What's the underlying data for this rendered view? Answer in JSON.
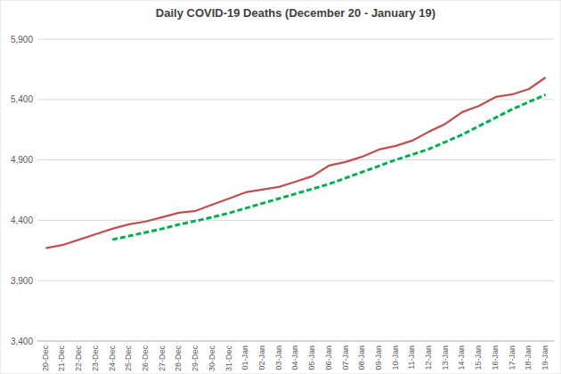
{
  "chart_data": {
    "type": "line",
    "title": "Daily COVID-19 Deaths (December 20 - January 19)",
    "categories": [
      "20-Dec",
      "21-Dec",
      "22-Dec",
      "23-Dec",
      "24-Dec",
      "25-Dec",
      "26-Dec",
      "27-Dec",
      "28-Dec",
      "29-Dec",
      "30-Dec",
      "31-Dec",
      "01-Jan",
      "02-Jan",
      "03-Jan",
      "04-Jan",
      "05-Jan",
      "06-Jan",
      "07-Jan",
      "08-Jan",
      "09-Jan",
      "10-Jan",
      "11-Jan",
      "12-Jan",
      "13-Jan",
      "14-Jan",
      "15-Jan",
      "16-Jan",
      "17-Jan",
      "18-Jan",
      "19-Jan"
    ],
    "series": [
      {
        "color": "#c0504d",
        "line_style": "solid",
        "values": [
          4170,
          4195,
          4240,
          4285,
          4330,
          4367,
          4390,
          4426,
          4463,
          4478,
          4530,
          4580,
          4632,
          4655,
          4677,
          4720,
          4765,
          4853,
          4883,
          4927,
          4986,
          5016,
          5060,
          5134,
          5200,
          5296,
          5347,
          5421,
          5443,
          5487,
          5583
        ]
      },
      {
        "color": "#00b050",
        "line_style": "dashed",
        "values": [
          null,
          null,
          null,
          null,
          4240,
          4270,
          4300,
          4330,
          4365,
          4395,
          4425,
          4460,
          4500,
          4540,
          4580,
          4620,
          4660,
          4700,
          4750,
          4800,
          4850,
          4900,
          4945,
          4990,
          5050,
          5110,
          5180,
          5250,
          5320,
          5380,
          5440
        ]
      }
    ],
    "ylim": [
      3400,
      5900
    ],
    "yticks": [
      {
        "value": 3400,
        "label": "3,400"
      },
      {
        "value": 3900,
        "label": "3,900"
      },
      {
        "value": 4400,
        "label": "4,400"
      },
      {
        "value": 4900,
        "label": "4,900"
      },
      {
        "value": 5400,
        "label": "5,400"
      },
      {
        "value": 5900,
        "label": "5,900"
      }
    ],
    "grid": true
  }
}
